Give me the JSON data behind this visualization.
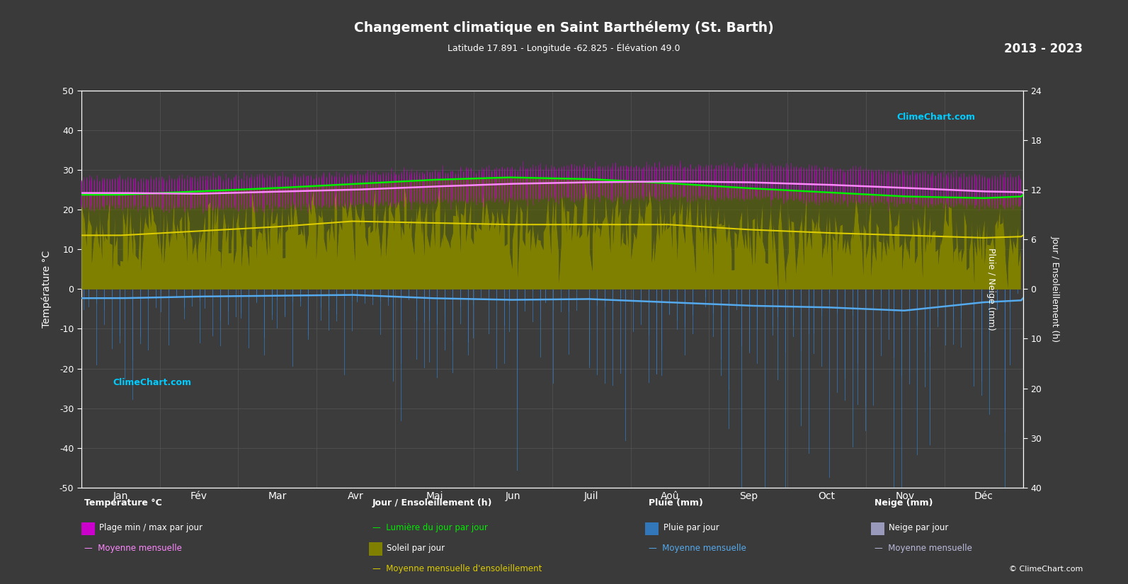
{
  "title": "Changement climatique en Saint Barthélemy (St. Barth)",
  "subtitle": "Latitude 17.891 - Longitude -62.825 - Élévation 49.0",
  "year_range": "2013 - 2023",
  "bg_color": "#3a3a3a",
  "plot_bg_color": "#3c3c3c",
  "text_color": "#ffffff",
  "grid_color": "#555555",
  "months_fr": [
    "Jan",
    "Fév",
    "Mar",
    "Avr",
    "Mai",
    "Jun",
    "Juil",
    "Aoû",
    "Sep",
    "Oct",
    "Nov",
    "Déc"
  ],
  "temp_min_monthly": [
    21.5,
    21.3,
    21.5,
    22.0,
    23.0,
    23.5,
    23.8,
    24.0,
    23.8,
    23.2,
    22.5,
    21.8
  ],
  "temp_max_monthly": [
    27.0,
    27.0,
    27.5,
    28.0,
    28.8,
    29.5,
    30.0,
    30.2,
    30.0,
    29.5,
    28.5,
    27.5
  ],
  "temp_mean_monthly": [
    24.2,
    24.0,
    24.5,
    25.0,
    25.8,
    26.5,
    26.9,
    27.1,
    26.9,
    26.3,
    25.5,
    24.6
  ],
  "sunshine_monthly": [
    6.5,
    7.0,
    7.5,
    8.2,
    8.0,
    7.8,
    7.8,
    7.8,
    7.2,
    6.8,
    6.5,
    6.2
  ],
  "daylight_monthly": [
    11.4,
    11.8,
    12.2,
    12.7,
    13.2,
    13.5,
    13.3,
    12.8,
    12.2,
    11.7,
    11.2,
    11.0
  ],
  "precip_monthly_mm": [
    55,
    45,
    40,
    35,
    55,
    65,
    60,
    80,
    100,
    110,
    130,
    80
  ],
  "n_years": 10,
  "sun_scale_max": 24,
  "rain_scale_max": 40,
  "temp_ylim": [
    -50,
    50
  ],
  "color_sunshine_fill": "#808000",
  "color_daylight_fill": "#5a6800",
  "color_temp_band": "#cc00cc",
  "color_temp_mean": "#ff88ff",
  "color_daylight_line": "#00ee00",
  "color_sunshine_line": "#ddcc00",
  "color_rain_bar": "#3377bb",
  "color_rain_mean": "#55aaee",
  "color_snow_bar": "#9999bb",
  "color_snow_mean": "#bbbbdd",
  "logo_color": "#00ccff"
}
